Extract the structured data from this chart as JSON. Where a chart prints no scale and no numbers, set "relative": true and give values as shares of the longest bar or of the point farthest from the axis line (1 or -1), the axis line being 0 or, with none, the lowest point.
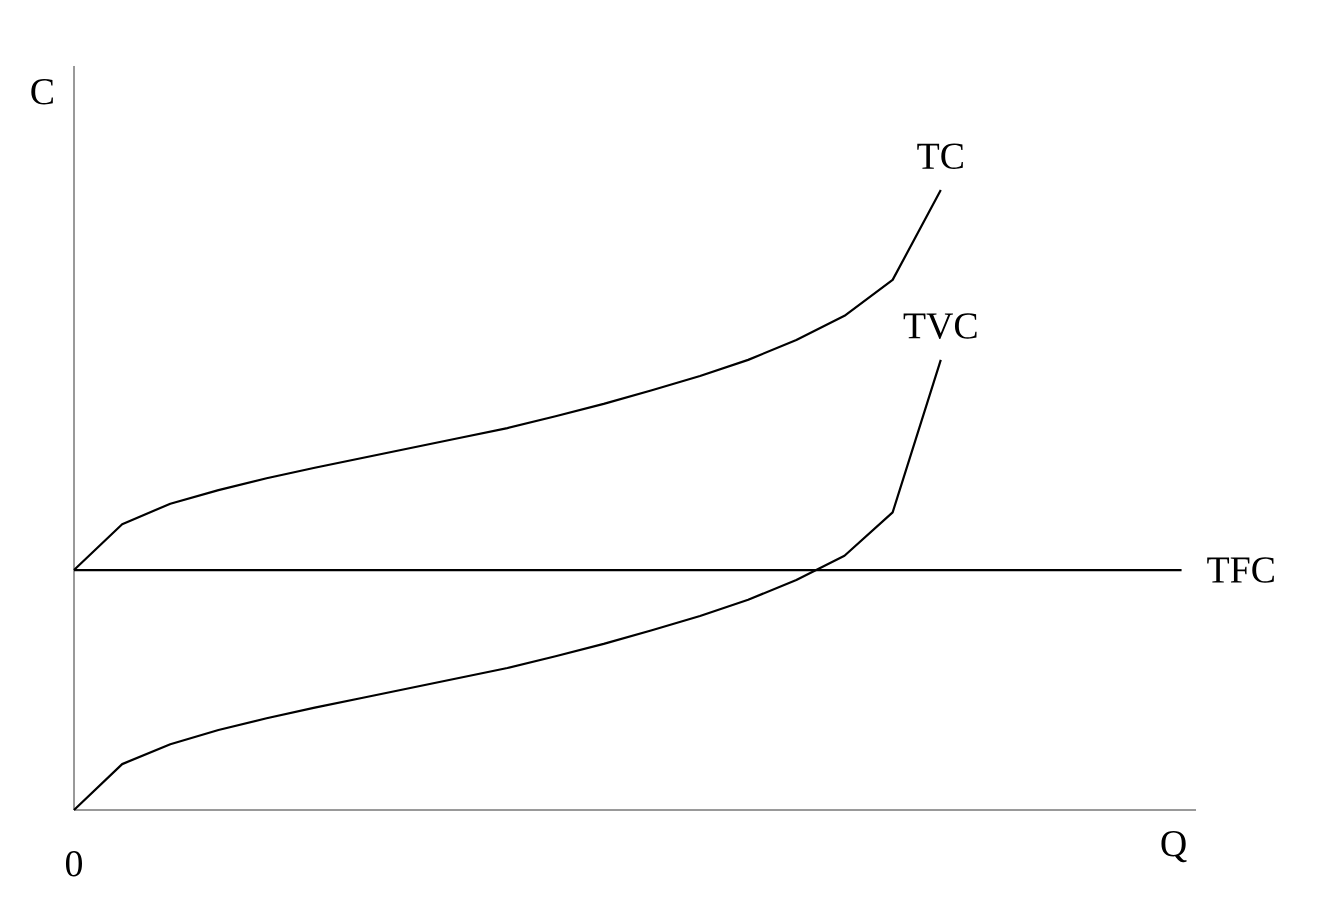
{
  "chart_data": {
    "type": "line",
    "relative": true,
    "xlabel": "Q",
    "ylabel": "C",
    "annotations": [
      "0"
    ],
    "line_style": "solid",
    "marker": "none",
    "categories": [
      null,
      null,
      null,
      null,
      null,
      null,
      null,
      null,
      null,
      null,
      null,
      null,
      null,
      null,
      null,
      null,
      null,
      null,
      null,
      null,
      null,
      null,
      null,
      null
    ],
    "series": [
      {
        "name": "TC",
        "color": "#000000",
        "values": [
          0.387,
          0.461,
          0.494,
          0.516,
          0.535,
          0.552,
          0.568,
          0.584,
          0.6,
          0.616,
          0.635,
          0.655,
          0.677,
          0.7,
          0.726,
          0.758,
          0.797,
          0.855,
          1.0,
          null,
          null,
          null,
          null,
          null
        ]
      },
      {
        "name": "TVC",
        "color": "#000000",
        "values": [
          0.0,
          0.074,
          0.106,
          0.129,
          0.148,
          0.165,
          0.181,
          0.197,
          0.213,
          0.229,
          0.248,
          0.268,
          0.29,
          0.313,
          0.339,
          0.371,
          0.41,
          0.48,
          0.726,
          null,
          null,
          null,
          null,
          null
        ]
      },
      {
        "name": "TFC",
        "color": "#000000",
        "values": [
          0.387,
          0.387,
          0.387,
          0.387,
          0.387,
          0.387,
          0.387,
          0.387,
          0.387,
          0.387,
          0.387,
          0.387,
          0.387,
          0.387,
          0.387,
          0.387,
          0.387,
          0.387,
          0.387,
          0.387,
          0.387,
          0.387,
          0.387,
          0.387
        ]
      }
    ]
  }
}
